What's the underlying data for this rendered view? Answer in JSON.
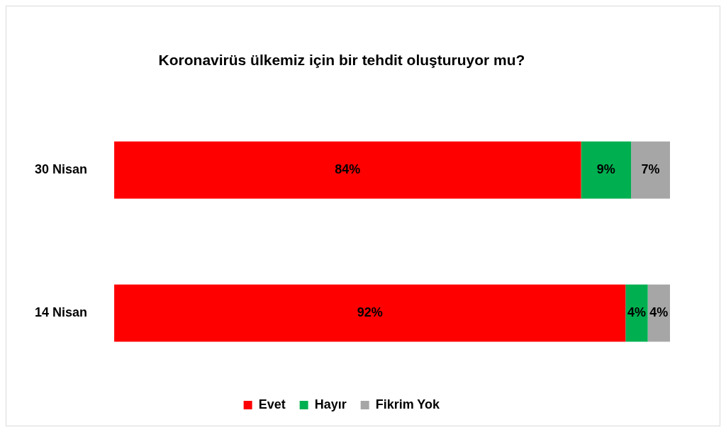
{
  "chart_data": {
    "type": "bar",
    "title": "Koronavirüs ülkemiz için bir tehdit oluşturuyor mu?",
    "orientation": "horizontal",
    "stacked": true,
    "categories": [
      "30 Nisan",
      "14 Nisan"
    ],
    "series": [
      {
        "name": "Evet",
        "color": "#ff0000",
        "values": [
          84,
          92
        ],
        "value_labels": [
          "84%",
          "92%"
        ]
      },
      {
        "name": "Hayır",
        "color": "#00b050",
        "values": [
          9,
          4
        ],
        "value_labels": [
          "9%",
          "4%"
        ]
      },
      {
        "name": "Fikrim Yok",
        "color": "#a6a6a6",
        "values": [
          7,
          4
        ],
        "value_labels": [
          "7%",
          "4%"
        ]
      }
    ],
    "legend": "bottom",
    "grid": false
  }
}
